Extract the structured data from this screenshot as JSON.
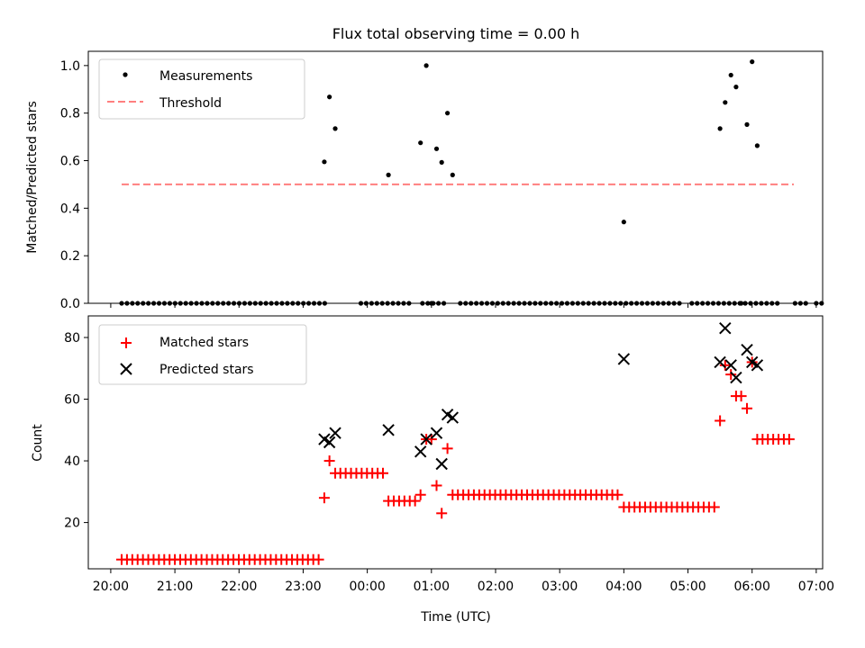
{
  "title": "Flux total observing time = 0.00 h",
  "xlabel": "Time (UTC)",
  "x_ticks": [
    "20:00",
    "21:00",
    "22:00",
    "23:00",
    "00:00",
    "01:00",
    "02:00",
    "03:00",
    "04:00",
    "05:00",
    "06:00",
    "07:00"
  ],
  "colors": {
    "matched": "#ff0000",
    "predicted": "#000000",
    "threshold": "#ff7f7f",
    "measurement": "#000000"
  },
  "chart_data": [
    {
      "type": "scatter",
      "ylabel": "Matched/Predicted stars",
      "ylim": [
        0,
        1.06
      ],
      "y_ticks": [
        "0.0",
        "0.2",
        "0.4",
        "0.6",
        "0.8",
        "1.0"
      ],
      "x_unit": "hours since 20:00 UTC",
      "x_range": [
        -0.35,
        11.1
      ],
      "legend_position": "top-left",
      "legend": [
        "Measurements",
        "Threshold"
      ],
      "threshold": {
        "y": 0.5,
        "x_start": 0.17,
        "x_end": 10.65
      },
      "zero_segments": [
        [
          0.17,
          3.36
        ],
        [
          3.9,
          4.66
        ],
        [
          4.86,
          5.2
        ],
        [
          5.45,
          8.94
        ],
        [
          9.06,
          10.44
        ],
        [
          10.67,
          10.89
        ],
        [
          11.0,
          11.2
        ]
      ],
      "measurements": [
        [
          3.33,
          0.595
        ],
        [
          3.41,
          0.868
        ],
        [
          3.5,
          0.735
        ],
        [
          4.33,
          0.54
        ],
        [
          4.83,
          0.675
        ],
        [
          4.92,
          1.0
        ],
        [
          5.08,
          0.65
        ],
        [
          5.16,
          0.593
        ],
        [
          5.25,
          0.8
        ],
        [
          5.33,
          0.54
        ],
        [
          8.0,
          0.342
        ],
        [
          9.5,
          0.735
        ],
        [
          9.58,
          0.845
        ],
        [
          9.67,
          0.96
        ],
        [
          9.75,
          0.91
        ],
        [
          9.92,
          0.752
        ],
        [
          10.0,
          1.016
        ],
        [
          10.08,
          0.663
        ],
        [
          5.0,
          0.0
        ],
        [
          9.83,
          0.0
        ]
      ]
    },
    {
      "type": "scatter",
      "ylabel": "Count",
      "ylim": [
        5,
        87
      ],
      "y_ticks": [
        "20",
        "40",
        "60",
        "80"
      ],
      "x_unit": "hours since 20:00 UTC",
      "x_range": [
        -0.35,
        11.1
      ],
      "legend_position": "top-left",
      "legend": [
        "Matched stars",
        "Predicted stars"
      ],
      "matched_runs": [
        {
          "x_start": 0.17,
          "x_end": 3.28,
          "step": 0.083,
          "y": 8
        },
        {
          "x_start": 3.58,
          "x_end": 4.25,
          "step": 0.083,
          "y": 36
        },
        {
          "x_start": 4.33,
          "x_end": 4.75,
          "step": 0.083,
          "y": 27
        },
        {
          "x_start": 5.33,
          "x_end": 7.92,
          "step": 0.083,
          "y": 29
        },
        {
          "x_start": 8.0,
          "x_end": 9.45,
          "step": 0.083,
          "y": 25
        },
        {
          "x_start": 10.08,
          "x_end": 10.6,
          "step": 0.083,
          "y": 47
        }
      ],
      "matched_points": [
        [
          3.33,
          28
        ],
        [
          3.41,
          40
        ],
        [
          3.5,
          36
        ],
        [
          4.83,
          29
        ],
        [
          4.92,
          47
        ],
        [
          5.0,
          47
        ],
        [
          5.08,
          32
        ],
        [
          5.16,
          23
        ],
        [
          5.25,
          44
        ],
        [
          9.5,
          53
        ],
        [
          9.58,
          71
        ],
        [
          9.67,
          68
        ],
        [
          9.75,
          61
        ],
        [
          9.83,
          61
        ],
        [
          9.92,
          57
        ],
        [
          10.0,
          72
        ]
      ],
      "predicted_points": [
        [
          3.33,
          47
        ],
        [
          3.41,
          46
        ],
        [
          3.5,
          49
        ],
        [
          4.33,
          50
        ],
        [
          4.83,
          43
        ],
        [
          4.92,
          47
        ],
        [
          5.08,
          49
        ],
        [
          5.16,
          39
        ],
        [
          5.25,
          55
        ],
        [
          5.33,
          54
        ],
        [
          8.0,
          73
        ],
        [
          9.5,
          72
        ],
        [
          9.58,
          83
        ],
        [
          9.67,
          71
        ],
        [
          9.75,
          67
        ],
        [
          9.92,
          76
        ],
        [
          10.0,
          72
        ],
        [
          10.08,
          71
        ]
      ]
    }
  ]
}
